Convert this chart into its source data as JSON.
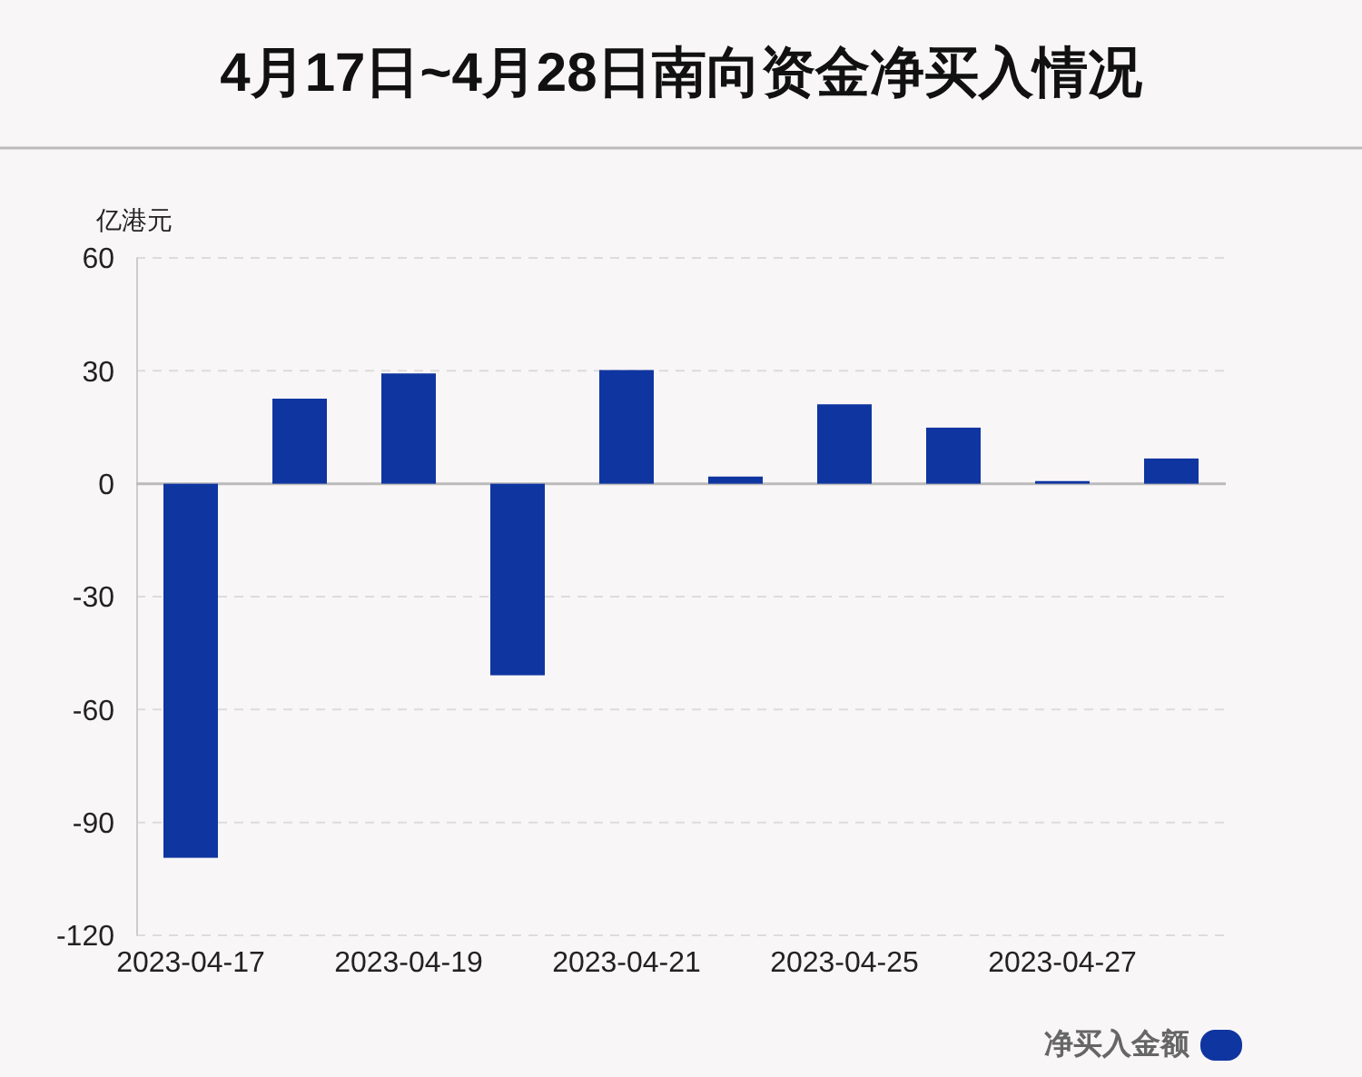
{
  "chart_data": {
    "type": "bar",
    "title": "4月17日~4月28日南向资金净买入情况",
    "ylabel": "亿港元",
    "categories": [
      "2023-04-17",
      null,
      "2023-04-19",
      null,
      "2023-04-21",
      null,
      "2023-04-25",
      null,
      "2023-04-27",
      null
    ],
    "series": [
      {
        "name": "净买入金额",
        "color": "#0f35a0",
        "values": [
          -99.4,
          22.6,
          29.3,
          -50.9,
          30.2,
          1.9,
          21.1,
          14.9,
          0.7,
          6.7
        ]
      }
    ],
    "ylim": [
      -120,
      60
    ],
    "yticks": [
      -120,
      -90,
      -60,
      -30,
      0,
      30,
      60
    ],
    "grid": "y",
    "legend": "bottom right"
  }
}
